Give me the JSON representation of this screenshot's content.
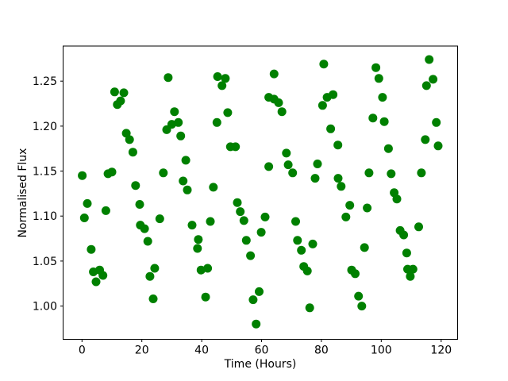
{
  "chart_data": {
    "type": "scatter",
    "title": "",
    "xlabel": "Time (Hours)",
    "ylabel": "Normalised Flux",
    "x_tick_labels": [
      "0",
      "20",
      "40",
      "60",
      "80",
      "100",
      "120"
    ],
    "x_ticks": [
      0,
      20,
      40,
      60,
      80,
      100,
      120
    ],
    "y_tick_labels": [
      "1.00",
      "1.05",
      "1.10",
      "1.15",
      "1.20",
      "1.25"
    ],
    "y_ticks": [
      1.0,
      1.05,
      1.1,
      1.15,
      1.2,
      1.25
    ],
    "xlim": [
      -6.3,
      125.5
    ],
    "ylim": [
      0.963,
      1.289
    ],
    "grid": false,
    "legend": "none",
    "marker": {
      "shape": "circle",
      "color": "#008000",
      "radius_px": 5.5
    },
    "series": [
      {
        "name": "normalised-flux-vs-time",
        "points": [
          [
            0.1,
            1.145
          ],
          [
            0.8,
            1.098
          ],
          [
            1.8,
            1.114
          ],
          [
            3.1,
            1.063
          ],
          [
            3.8,
            1.038
          ],
          [
            4.7,
            1.027
          ],
          [
            5.9,
            1.04
          ],
          [
            7.0,
            1.034
          ],
          [
            8.0,
            1.106
          ],
          [
            8.7,
            1.147
          ],
          [
            10.0,
            1.149
          ],
          [
            10.9,
            1.238
          ],
          [
            11.8,
            1.224
          ],
          [
            12.9,
            1.228
          ],
          [
            14.0,
            1.237
          ],
          [
            14.8,
            1.192
          ],
          [
            15.9,
            1.185
          ],
          [
            17.0,
            1.171
          ],
          [
            17.9,
            1.134
          ],
          [
            19.3,
            1.113
          ],
          [
            19.5,
            1.09
          ],
          [
            20.9,
            1.086
          ],
          [
            22.0,
            1.072
          ],
          [
            22.7,
            1.033
          ],
          [
            23.8,
            1.008
          ],
          [
            24.3,
            1.042
          ],
          [
            26.0,
            1.097
          ],
          [
            27.2,
            1.148
          ],
          [
            28.3,
            1.196
          ],
          [
            28.8,
            1.254
          ],
          [
            30.0,
            1.202
          ],
          [
            30.9,
            1.216
          ],
          [
            32.2,
            1.204
          ],
          [
            33.0,
            1.189
          ],
          [
            33.8,
            1.139
          ],
          [
            34.7,
            1.162
          ],
          [
            35.2,
            1.129
          ],
          [
            36.8,
            1.09
          ],
          [
            38.6,
            1.064
          ],
          [
            38.9,
            1.074
          ],
          [
            39.8,
            1.04
          ],
          [
            41.3,
            1.01
          ],
          [
            42.0,
            1.042
          ],
          [
            42.9,
            1.094
          ],
          [
            43.9,
            1.132
          ],
          [
            45.1,
            1.204
          ],
          [
            45.3,
            1.255
          ],
          [
            46.8,
            1.245
          ],
          [
            47.9,
            1.253
          ],
          [
            48.7,
            1.215
          ],
          [
            49.6,
            1.177
          ],
          [
            51.3,
            1.177
          ],
          [
            51.9,
            1.115
          ],
          [
            52.9,
            1.105
          ],
          [
            54.1,
            1.095
          ],
          [
            54.9,
            1.073
          ],
          [
            56.3,
            1.056
          ],
          [
            57.2,
            1.007
          ],
          [
            58.2,
            0.98
          ],
          [
            59.2,
            1.016
          ],
          [
            59.9,
            1.082
          ],
          [
            61.2,
            1.099
          ],
          [
            62.4,
            1.232
          ],
          [
            62.4,
            1.155
          ],
          [
            64.2,
            1.258
          ],
          [
            64.2,
            1.23
          ],
          [
            65.7,
            1.226
          ],
          [
            66.8,
            1.216
          ],
          [
            68.3,
            1.17
          ],
          [
            68.9,
            1.157
          ],
          [
            70.4,
            1.148
          ],
          [
            71.4,
            1.094
          ],
          [
            72.0,
            1.073
          ],
          [
            73.3,
            1.062
          ],
          [
            74.1,
            1.044
          ],
          [
            75.3,
            1.039
          ],
          [
            76.1,
            0.998
          ],
          [
            77.1,
            1.069
          ],
          [
            77.9,
            1.142
          ],
          [
            78.7,
            1.158
          ],
          [
            80.4,
            1.223
          ],
          [
            80.8,
            1.269
          ],
          [
            81.9,
            1.232
          ],
          [
            83.1,
            1.197
          ],
          [
            83.9,
            1.235
          ],
          [
            85.5,
            1.179
          ],
          [
            85.6,
            1.142
          ],
          [
            86.6,
            1.133
          ],
          [
            88.2,
            1.099
          ],
          [
            89.5,
            1.112
          ],
          [
            90.1,
            1.04
          ],
          [
            91.3,
            1.036
          ],
          [
            92.4,
            1.011
          ],
          [
            93.5,
            1.0
          ],
          [
            94.4,
            1.065
          ],
          [
            95.3,
            1.109
          ],
          [
            95.9,
            1.148
          ],
          [
            97.2,
            1.209
          ],
          [
            98.2,
            1.265
          ],
          [
            99.2,
            1.253
          ],
          [
            100.4,
            1.232
          ],
          [
            101.0,
            1.205
          ],
          [
            102.4,
            1.175
          ],
          [
            103.3,
            1.147
          ],
          [
            104.3,
            1.126
          ],
          [
            105.2,
            1.119
          ],
          [
            106.3,
            1.084
          ],
          [
            107.5,
            1.079
          ],
          [
            108.5,
            1.059
          ],
          [
            108.8,
            1.041
          ],
          [
            109.7,
            1.033
          ],
          [
            110.6,
            1.041
          ],
          [
            112.5,
            1.088
          ],
          [
            113.4,
            1.148
          ],
          [
            114.7,
            1.185
          ],
          [
            115.1,
            1.245
          ],
          [
            116.0,
            1.274
          ],
          [
            117.3,
            1.252
          ],
          [
            118.4,
            1.204
          ],
          [
            119.0,
            1.178
          ]
        ]
      }
    ]
  }
}
